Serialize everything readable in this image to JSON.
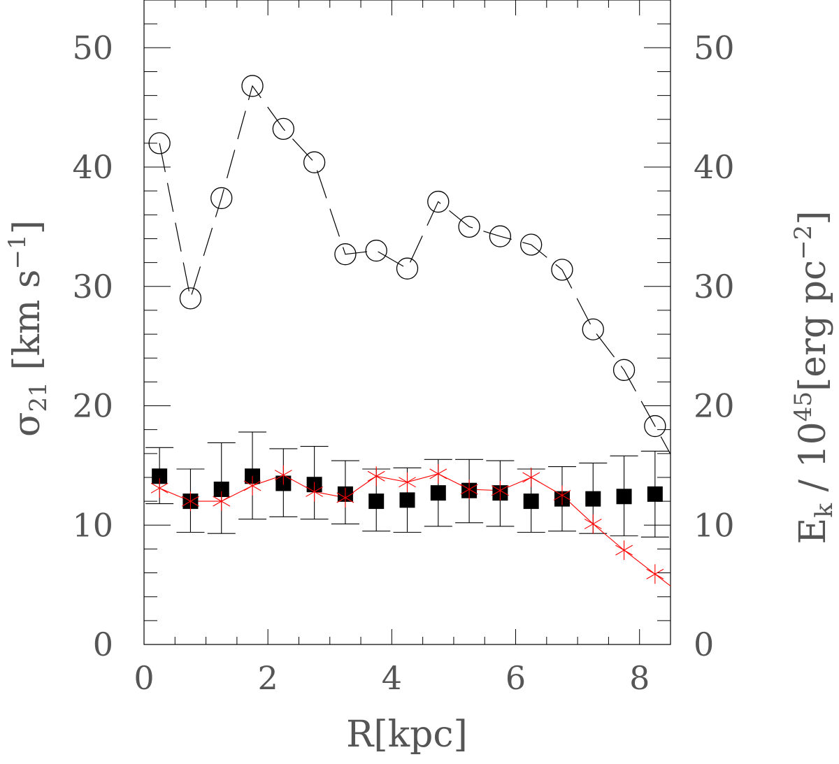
{
  "chart_data": {
    "type": "scatter",
    "xlabel": "R[kpc]",
    "ylabel_left": "σ21 [km s−1]",
    "ylabel_right": "Ek / 1045 [erg pc−2]",
    "xlim": [
      0,
      8.5
    ],
    "ylim": [
      0,
      54
    ],
    "ylim_right": [
      0,
      54
    ],
    "x_ticks": [
      0,
      2,
      4,
      6,
      8
    ],
    "y_ticks": [
      0,
      10,
      20,
      30,
      40,
      50
    ],
    "series": [
      {
        "marker": "open-circle",
        "line": "long-dash",
        "color": "#000000",
        "axis": "right",
        "x": [
          0.25,
          0.75,
          1.25,
          1.75,
          2.25,
          2.75,
          3.25,
          3.75,
          4.25,
          4.75,
          5.25,
          5.75,
          6.25,
          6.75,
          7.25,
          7.75,
          8.25
        ],
        "values": [
          42.0,
          29.0,
          37.4,
          46.8,
          43.2,
          40.4,
          32.7,
          33.0,
          31.5,
          37.1,
          35.0,
          34.2,
          33.5,
          31.4,
          26.4,
          23.0,
          18.3
        ]
      },
      {
        "marker": "filled-square",
        "line": "none",
        "color": "#000000",
        "axis": "left",
        "x": [
          0.25,
          0.75,
          1.25,
          1.75,
          2.25,
          2.75,
          3.25,
          3.75,
          4.25,
          4.75,
          5.25,
          5.75,
          6.25,
          6.75,
          7.25,
          7.75,
          8.25
        ],
        "values": [
          14.1,
          12.0,
          13.0,
          14.1,
          13.5,
          13.4,
          12.6,
          12.0,
          12.1,
          12.7,
          12.9,
          12.7,
          12.0,
          12.2,
          12.2,
          12.4,
          12.6
        ],
        "err_low": [
          11.8,
          9.4,
          9.3,
          10.5,
          10.7,
          10.5,
          10.1,
          9.5,
          9.4,
          9.9,
          10.2,
          9.9,
          9.4,
          9.5,
          9.3,
          9.1,
          9.0
        ],
        "err_high": [
          16.5,
          14.7,
          16.9,
          17.8,
          16.4,
          16.6,
          15.4,
          14.7,
          14.8,
          15.5,
          15.5,
          15.4,
          14.7,
          14.9,
          15.2,
          15.8,
          16.2
        ]
      },
      {
        "marker": "asterisk",
        "line": "solid",
        "color": "#ff0000",
        "axis": "left",
        "x": [
          0.25,
          0.75,
          1.25,
          1.75,
          2.25,
          2.75,
          3.25,
          3.75,
          4.25,
          4.75,
          5.25,
          5.75,
          6.25,
          6.75,
          7.25,
          7.75,
          8.25
        ],
        "values": [
          13.1,
          12.0,
          12.0,
          13.3,
          14.2,
          12.8,
          12.3,
          14.1,
          13.6,
          14.3,
          13.0,
          12.9,
          14.0,
          12.5,
          10.1,
          7.9,
          5.9
        ]
      }
    ]
  }
}
